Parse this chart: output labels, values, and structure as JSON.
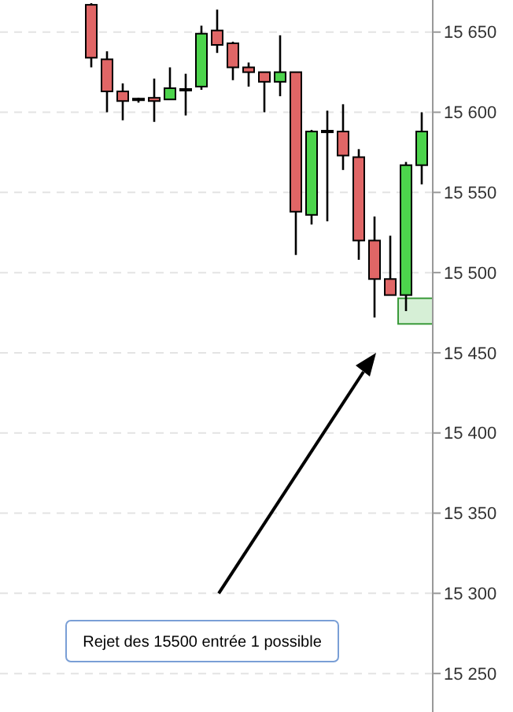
{
  "chart_data": {
    "type": "candlestick",
    "categories": [
      null,
      null,
      null,
      null,
      null,
      null,
      null,
      null,
      null,
      null,
      null,
      null,
      null,
      null,
      null,
      null,
      null,
      null,
      null,
      null,
      null,
      null
    ],
    "ohlc": [
      [
        15667,
        15668,
        15628,
        15634
      ],
      [
        15633,
        15638,
        15600,
        15613
      ],
      [
        15613,
        15618,
        15595,
        15607
      ],
      [
        15608,
        15609,
        15606,
        15608
      ],
      [
        15609,
        15621,
        15594,
        15607
      ],
      [
        15608,
        15628,
        15608,
        15615
      ],
      [
        15614,
        15624,
        15598,
        15614
      ],
      [
        15616,
        15654,
        15614,
        15649
      ],
      [
        15651,
        15664,
        15637,
        15642
      ],
      [
        15643,
        15644,
        15620,
        15628
      ],
      [
        15628,
        15631,
        15616,
        15625
      ],
      [
        15625,
        15625,
        15600,
        15619
      ],
      [
        15619,
        15648,
        15610,
        15625
      ],
      [
        15625,
        15625,
        15511,
        15538
      ],
      [
        15536,
        15589,
        15530,
        15588
      ],
      [
        15588,
        15601,
        15532,
        15588
      ],
      [
        15588,
        15605,
        15564,
        15573
      ],
      [
        15572,
        15577,
        15508,
        15520
      ],
      [
        15520,
        15535,
        15472,
        15496
      ],
      [
        15496,
        15523,
        15486,
        15486
      ],
      [
        15486,
        15569,
        15476,
        15567
      ],
      [
        15567,
        15600,
        15555,
        15588
      ]
    ],
    "colors": [
      "#e06666",
      "#e06666",
      "#e06666",
      "#000000",
      "#e06666",
      "#4cd44c",
      "#000000",
      "#4cd44c",
      "#e06666",
      "#e06666",
      "#e06666",
      "#e06666",
      "#4cd44c",
      "#e06666",
      "#4cd44c",
      "#000000",
      "#e06666",
      "#e06666",
      "#e06666",
      "#e06666",
      "#4cd44c",
      "#4cd44c"
    ],
    "ylim": [
      15226,
      15670
    ],
    "yticks": [
      {
        "value": 15250,
        "label": "15 250"
      },
      {
        "value": 15300,
        "label": "15 300"
      },
      {
        "value": 15350,
        "label": "15 350"
      },
      {
        "value": 15400,
        "label": "15 400"
      },
      {
        "value": 15450,
        "label": "15 450"
      },
      {
        "value": 15500,
        "label": "15 500"
      },
      {
        "value": 15550,
        "label": "15 550"
      },
      {
        "value": 15600,
        "label": "15 600"
      },
      {
        "value": 15650,
        "label": "15 650"
      }
    ],
    "grid": "y",
    "bands": [
      {
        "axis": "y",
        "from": 15468,
        "to": 15484,
        "color": "#d6efd6"
      }
    ],
    "annotations": [
      "Rejet des 15500 entrée 1 possible"
    ]
  }
}
